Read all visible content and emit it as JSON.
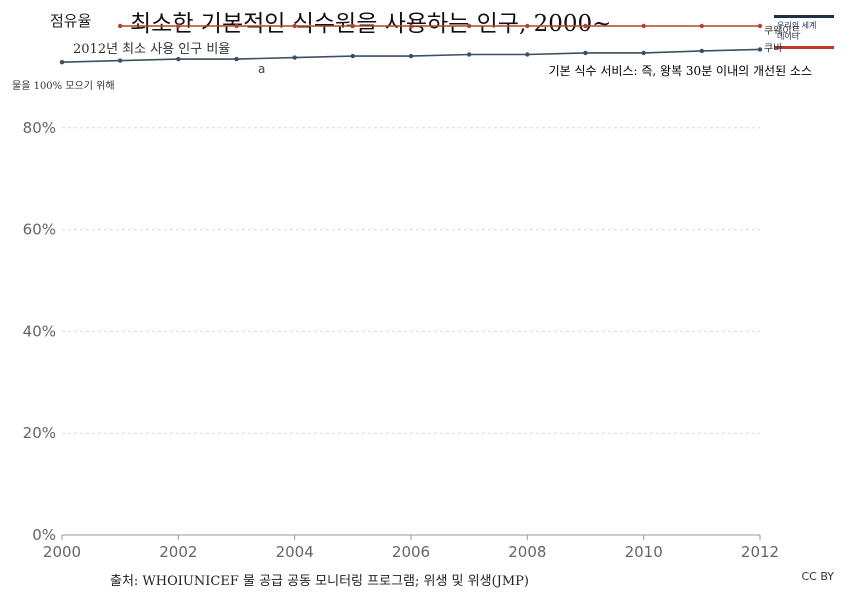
{
  "header": {
    "share_tab": "점유율",
    "title": "최소한 기본적인 식수원을 사용하는 인구, 2000~",
    "subtitle": "2012년 최소 사용 인구 비율",
    "note": "a",
    "definition": "기본 식수 서비스: 즉, 왕복 30분 이내의 개선된 소스",
    "y_axis_note": "물을 100% 모으기 위해"
  },
  "logo": {
    "line1": "우리의 세계",
    "line2": "데이터"
  },
  "footer": {
    "source": "출처: WHOIUNICEF 물 공급 공동 모니터링 프로그램; 위생 및 위생(JMP)",
    "license": "CC BY"
  },
  "colors": {
    "kuwait": "#b5432a",
    "cuba": "#3d4f63",
    "grid": "#d9d9d9"
  },
  "chart_data": {
    "type": "line",
    "x": [
      2000,
      2001,
      2002,
      2003,
      2004,
      2005,
      2006,
      2007,
      2008,
      2009,
      2010,
      2011,
      2012
    ],
    "xlim": [
      2000,
      2012
    ],
    "ylim": [
      0,
      100
    ],
    "y_ticks": [
      0,
      20,
      40,
      60,
      80
    ],
    "y_tick_labels": [
      "0%",
      "20%",
      "40%",
      "60%",
      "80%"
    ],
    "x_ticks": [
      2000,
      2002,
      2004,
      2006,
      2008,
      2010,
      2012
    ],
    "grid": "horizontal dashed",
    "series": [
      {
        "name": "쿠웨이트",
        "color": "#b5432a",
        "x": [
          2001,
          2002,
          2003,
          2004,
          2005,
          2006,
          2007,
          2008,
          2009,
          2010,
          2011,
          2012
        ],
        "values": [
          100,
          100,
          100,
          100,
          100,
          100,
          100,
          100,
          100,
          100,
          100,
          100
        ]
      },
      {
        "name": "쿠바",
        "color": "#3d4f63",
        "x": [
          2000,
          2001,
          2002,
          2003,
          2004,
          2005,
          2006,
          2007,
          2008,
          2009,
          2010,
          2011,
          2012
        ],
        "values": [
          92.9,
          93.2,
          93.5,
          93.5,
          93.8,
          94.1,
          94.1,
          94.4,
          94.4,
          94.7,
          94.7,
          95.1,
          95.4
        ]
      }
    ]
  }
}
